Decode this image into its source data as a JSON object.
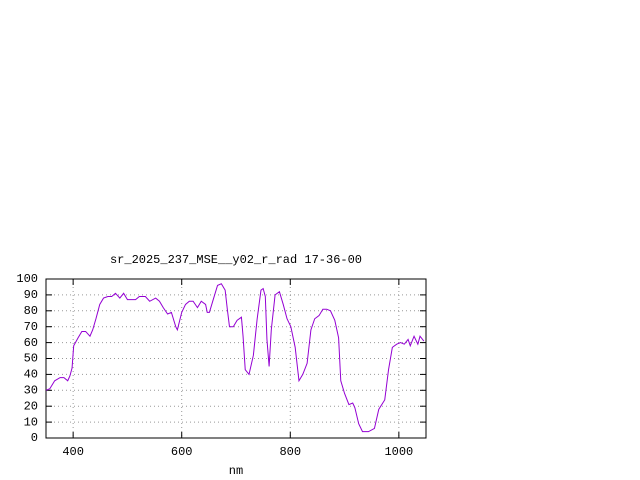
{
  "chart_data": {
    "type": "line",
    "title": "sr_2025_237_MSE__y02_r_rad 17-36-00",
    "x_label": "nm",
    "x": [
      350,
      357,
      366,
      376,
      383,
      390,
      394,
      398,
      401,
      409,
      416,
      423,
      431,
      436,
      442,
      449,
      456,
      464,
      471,
      478,
      486,
      493,
      500,
      508,
      515,
      522,
      533,
      541,
      552,
      559,
      566,
      574,
      581,
      589,
      592,
      600,
      607,
      614,
      621,
      629,
      636,
      644,
      647,
      651,
      658,
      666,
      673,
      680,
      684,
      688,
      695,
      702,
      710,
      713,
      717,
      724,
      732,
      739,
      746,
      750,
      754,
      757,
      761,
      765,
      772,
      780,
      787,
      794,
      801,
      809,
      816,
      823,
      831,
      838,
      845,
      853,
      860,
      867,
      874,
      882,
      889,
      893,
      900,
      908,
      915,
      919,
      926,
      933,
      944,
      955,
      963,
      974,
      981,
      988,
      996,
      1003,
      1010,
      1017,
      1021,
      1028,
      1035,
      1039,
      1046
    ],
    "series": [
      {
        "color": "#9400d3",
        "values": [
          30,
          31,
          36,
          38,
          38,
          36,
          39,
          44,
          58,
          63,
          67,
          67,
          64,
          68,
          75,
          84,
          88,
          89,
          89,
          91,
          88,
          91,
          87,
          87,
          87,
          89,
          89,
          86,
          88,
          86,
          82,
          78,
          79,
          70,
          68,
          79,
          84,
          86,
          86,
          82,
          86,
          84,
          79,
          79,
          87,
          96,
          97,
          93,
          81,
          70,
          70,
          74,
          76,
          64,
          43,
          40,
          52,
          75,
          93,
          94,
          89,
          62,
          45,
          68,
          90,
          92,
          84,
          75,
          70,
          57,
          36,
          40,
          47,
          68,
          75,
          77,
          81,
          81,
          80,
          74,
          63,
          36,
          28,
          21,
          22,
          19,
          9,
          4,
          4,
          6,
          18,
          24,
          43,
          57,
          59,
          60,
          59,
          62,
          58,
          64,
          59,
          64,
          61
        ]
      }
    ],
    "xlim": [
      350,
      1050
    ],
    "ylim": [
      0,
      100
    ],
    "xticks": [
      400,
      600,
      800,
      1000
    ],
    "yticks": [
      0,
      10,
      20,
      30,
      40,
      50,
      60,
      70,
      80,
      90,
      100
    ],
    "grid": true
  }
}
